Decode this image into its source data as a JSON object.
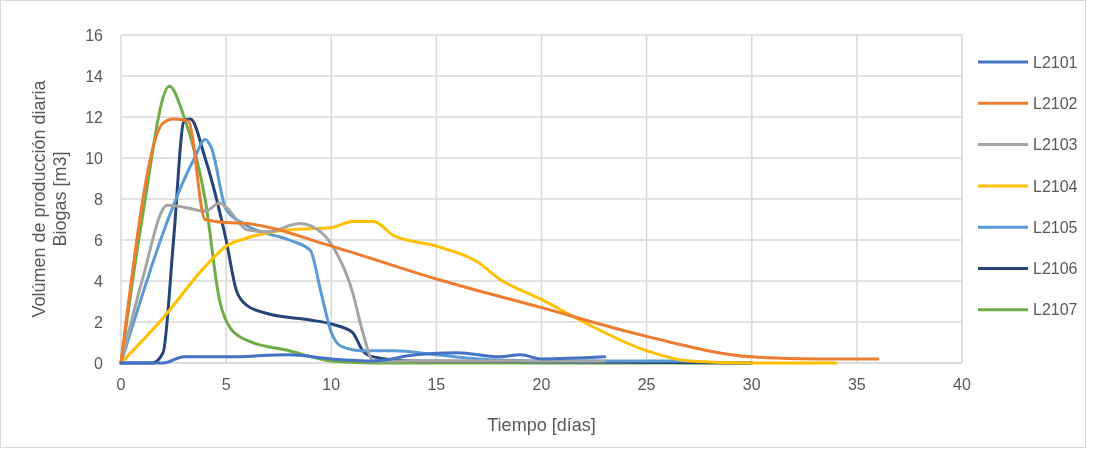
{
  "chart_data": {
    "type": "line",
    "xlabel": "Tiempo [días]",
    "ylabel": "Volúmen de producción diaria Biogas  [m3]",
    "xlim": [
      0,
      40
    ],
    "xticks": [
      0,
      5,
      10,
      15,
      20,
      25,
      30,
      35,
      40
    ],
    "ylim": [
      0,
      16
    ],
    "yticks": [
      0,
      2,
      4,
      6,
      8,
      10,
      12,
      14,
      16
    ],
    "grid": true,
    "legend": "right",
    "marker": "none",
    "line_style": "solid",
    "series": [
      {
        "name": "L2101",
        "color": "#4472c4",
        "x": [
          0,
          2,
          3,
          5,
          8,
          10,
          12,
          14,
          16,
          18,
          19,
          20,
          23
        ],
        "values": [
          0,
          0,
          0.3,
          0.3,
          0.4,
          0.2,
          0.1,
          0.4,
          0.5,
          0.3,
          0.4,
          0.2,
          0.3
        ]
      },
      {
        "name": "L2102",
        "color": "#ed7d31",
        "x": [
          0,
          2,
          2.5,
          3.2,
          4,
          5,
          6,
          10,
          15,
          20,
          25,
          30,
          33,
          36
        ],
        "values": [
          0,
          11.7,
          11.9,
          11.8,
          7.0,
          6.85,
          6.8,
          5.7,
          4.1,
          2.7,
          1.3,
          0.3,
          0.2,
          0.2
        ]
      },
      {
        "name": "L2103",
        "color": "#a5a5a5",
        "x": [
          0,
          1,
          2.2,
          3,
          4,
          4.7,
          5,
          6,
          7,
          8.5,
          9,
          10,
          11,
          11.5,
          12,
          23
        ],
        "values": [
          0,
          4,
          7.7,
          7.6,
          7.4,
          7.8,
          7.6,
          6.5,
          6.4,
          6.8,
          6.7,
          5.8,
          3.5,
          1.5,
          0.1,
          0.1
        ]
      },
      {
        "name": "L2104",
        "color": "#ffc000",
        "x": [
          0,
          2,
          4,
          5,
          6,
          8,
          10,
          11,
          12,
          13,
          15,
          17,
          18,
          20,
          22,
          25,
          27,
          30,
          34
        ],
        "values": [
          0,
          2.2,
          4.7,
          5.7,
          6.1,
          6.5,
          6.6,
          6.9,
          6.9,
          6.2,
          5.7,
          4.9,
          4.1,
          3.1,
          2.0,
          0.6,
          0.1,
          0,
          0
        ]
      },
      {
        "name": "L2105",
        "color": "#5b9bd5",
        "x": [
          0,
          3.5,
          4,
          4.3,
          5,
          6,
          8,
          9,
          9.5,
          10,
          10.5,
          11.5,
          13,
          15,
          17,
          20,
          27
        ],
        "values": [
          0,
          10,
          10.9,
          10.5,
          7.5,
          6.7,
          6.0,
          5.5,
          3.5,
          1.5,
          0.8,
          0.6,
          0.6,
          0.4,
          0.2,
          0.1,
          0.1
        ]
      },
      {
        "name": "L2106",
        "color": "#264478",
        "x": [
          0,
          1.5,
          2,
          2.5,
          3,
          3.3,
          4,
          5,
          5.5,
          6,
          7,
          9,
          10,
          11,
          11.5,
          12,
          14,
          30
        ],
        "values": [
          0,
          0,
          0.5,
          6,
          11.8,
          11.9,
          10,
          6,
          3.5,
          2.8,
          2.4,
          2.1,
          1.9,
          1.5,
          0.6,
          0.3,
          0.1,
          0
        ]
      },
      {
        "name": "L2107",
        "color": "#70ad47",
        "x": [
          0,
          1,
          2.3,
          3,
          4,
          4.7,
          5.2,
          6,
          8,
          10,
          12,
          30
        ],
        "values": [
          0,
          7,
          13.5,
          12,
          8,
          3,
          1.7,
          1.1,
          0.6,
          0.1,
          0,
          0
        ]
      }
    ]
  }
}
